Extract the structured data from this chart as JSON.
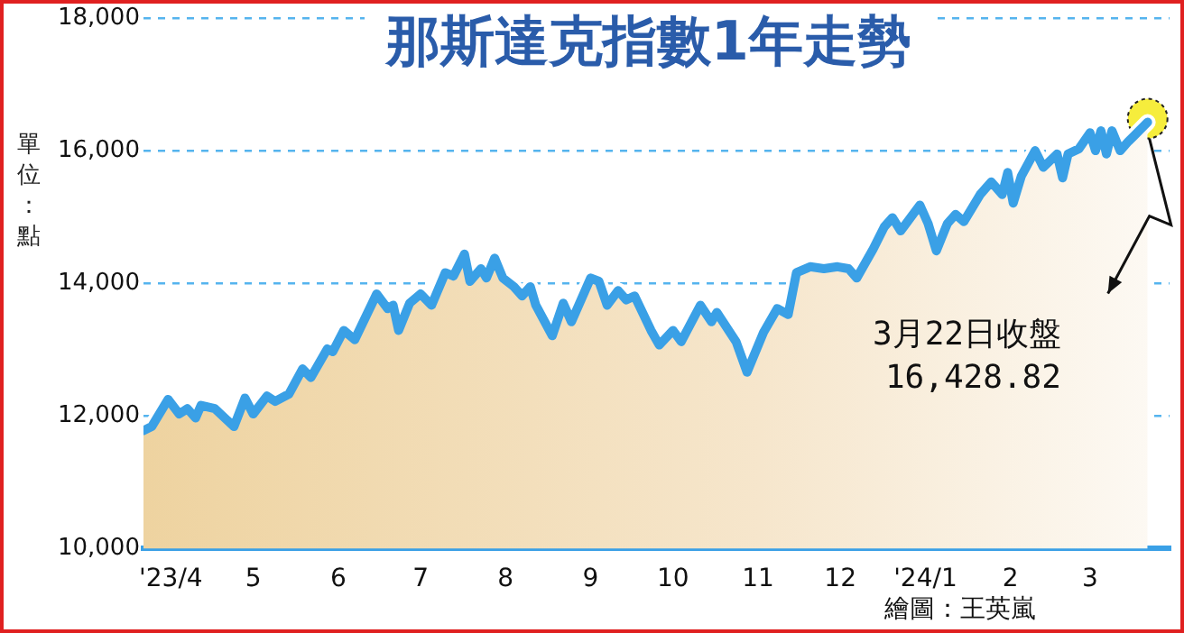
{
  "chart_data": {
    "type": "area",
    "title": "那斯達克指數1年走勢",
    "ylabel": "單位：點",
    "x": [
      "2023-03-22",
      "2023-03-25",
      "2023-03-31",
      "2023-04-04",
      "2023-04-07",
      "2023-04-10",
      "2023-04-12",
      "2023-04-17",
      "2023-04-24",
      "2023-04-28",
      "2023-05-01",
      "2023-05-06",
      "2023-05-09",
      "2023-05-14",
      "2023-05-19",
      "2023-05-22",
      "2023-05-28",
      "2023-05-30",
      "2023-06-03",
      "2023-06-07",
      "2023-06-15",
      "2023-06-19",
      "2023-06-21",
      "2023-06-23",
      "2023-06-27",
      "2023-07-01",
      "2023-07-05",
      "2023-07-10",
      "2023-07-13",
      "2023-07-17",
      "2023-07-19",
      "2023-07-23",
      "2023-07-25",
      "2023-07-28",
      "2023-07-31",
      "2023-08-04",
      "2023-08-07",
      "2023-08-10",
      "2023-08-12",
      "2023-08-18",
      "2023-08-22",
      "2023-08-25",
      "2023-09-01",
      "2023-09-04",
      "2023-09-07",
      "2023-09-11",
      "2023-09-14",
      "2023-09-17",
      "2023-09-23",
      "2023-09-26",
      "2023-10-01",
      "2023-10-04",
      "2023-10-11",
      "2023-10-15",
      "2023-10-17",
      "2023-10-24",
      "2023-10-28",
      "2023-11-03",
      "2023-11-08",
      "2023-11-12",
      "2023-11-15",
      "2023-11-20",
      "2023-11-25",
      "2023-11-30",
      "2023-12-04",
      "2023-12-07",
      "2023-12-13",
      "2023-12-17",
      "2023-12-20",
      "2023-12-23",
      "2023-12-30",
      "2024-01-02",
      "2024-01-05",
      "2024-01-09",
      "2024-01-12",
      "2024-01-15",
      "2024-01-21",
      "2024-01-25",
      "2024-01-29",
      "2024-01-31",
      "2024-02-02",
      "2024-02-05",
      "2024-02-10",
      "2024-02-13",
      "2024-02-18",
      "2024-02-20",
      "2024-02-22",
      "2024-02-26",
      "2024-03-01",
      "2024-03-03",
      "2024-03-05",
      "2024-03-07",
      "2024-03-09",
      "2024-03-12",
      "2024-03-15",
      "2024-03-17",
      "2024-03-22"
    ],
    "series": [
      {
        "color": "#3aa0e6",
        "values": [
          11780,
          11840,
          12250,
          12030,
          12110,
          11970,
          12160,
          12110,
          11840,
          12270,
          12030,
          12300,
          12220,
          12330,
          12710,
          12580,
          13010,
          12970,
          13290,
          13150,
          13840,
          13620,
          13670,
          13290,
          13700,
          13840,
          13670,
          14160,
          14110,
          14440,
          14030,
          14220,
          14080,
          14380,
          14080,
          13950,
          13810,
          13950,
          13670,
          13210,
          13700,
          13420,
          14080,
          14030,
          13670,
          13890,
          13750,
          13810,
          13290,
          13070,
          13290,
          13120,
          13670,
          13420,
          13560,
          13120,
          12660,
          13260,
          13620,
          13530,
          14160,
          14250,
          14220,
          14250,
          14220,
          14080,
          14520,
          14850,
          14990,
          14790,
          15180,
          14900,
          14490,
          14900,
          15040,
          14930,
          15340,
          15530,
          15340,
          15670,
          15210,
          15620,
          16000,
          15750,
          15950,
          15590,
          15950,
          16030,
          16270,
          16000,
          16300,
          15950,
          16300,
          16000,
          16140,
          16220,
          16428.82
        ]
      }
    ],
    "xlim": [
      "2023-03-22",
      "2024-03-30"
    ],
    "xticks": [
      {
        "value": "2023-04-01",
        "label": "'23/4"
      },
      {
        "value": "2023-05-01",
        "label": "5"
      },
      {
        "value": "2023-06-01",
        "label": "6"
      },
      {
        "value": "2023-07-01",
        "label": "7"
      },
      {
        "value": "2023-08-01",
        "label": "8"
      },
      {
        "value": "2023-09-01",
        "label": "9"
      },
      {
        "value": "2023-10-01",
        "label": "10"
      },
      {
        "value": "2023-11-01",
        "label": "11"
      },
      {
        "value": "2023-12-01",
        "label": "12"
      },
      {
        "value": "2024-01-01",
        "label": "'24/1"
      },
      {
        "value": "2024-02-01",
        "label": "2"
      },
      {
        "value": "2024-03-01",
        "label": "3"
      }
    ],
    "ylim": [
      10000,
      18000
    ],
    "yticks": [
      {
        "value": 10000,
        "label": "10,000"
      },
      {
        "value": 12000,
        "label": "12,000"
      },
      {
        "value": 14000,
        "label": "14,000"
      },
      {
        "value": 16000,
        "label": "16,000"
      },
      {
        "value": 18000,
        "label": "18,000"
      }
    ],
    "grid": "y",
    "legend": false,
    "marker": "none",
    "annotations": [
      "3月22日收盤\n16,428.82",
      "繪圖：王英嵐"
    ]
  }
}
